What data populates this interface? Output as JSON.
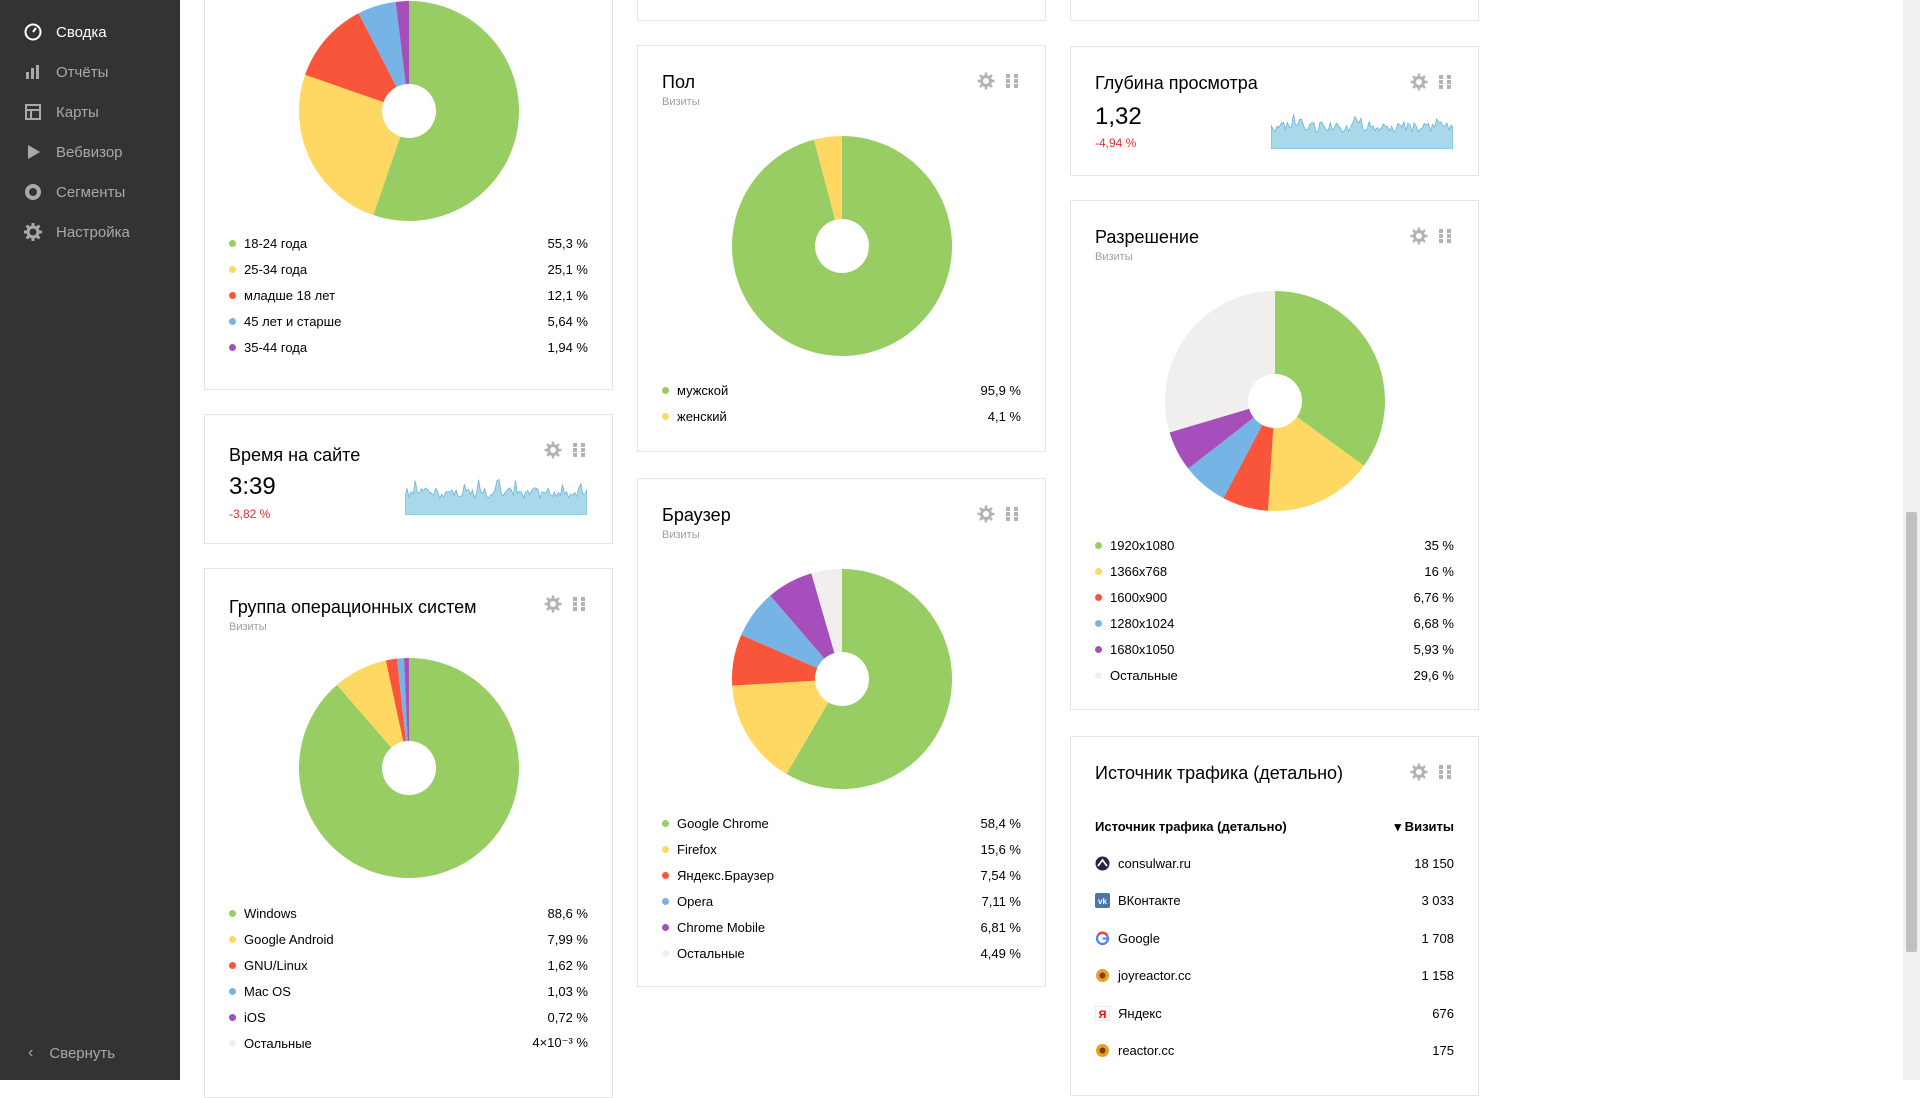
{
  "sidebar": {
    "items": [
      {
        "label": "Сводка",
        "icon": "dashboard-icon"
      },
      {
        "label": "Отчёты",
        "icon": "bar-chart-icon"
      },
      {
        "label": "Карты",
        "icon": "map-icon"
      },
      {
        "label": "Вебвизор",
        "icon": "play-icon"
      },
      {
        "label": "Сегменты",
        "icon": "segment-icon"
      },
      {
        "label": "Настройка",
        "icon": "gear-icon"
      }
    ],
    "collapse_label": "Свернуть"
  },
  "colors": {
    "green": "#97cd63",
    "yellow": "#fed862",
    "red": "#f9553a",
    "blue": "#76b4e6",
    "purple": "#a64fbc",
    "other": "#f1efed",
    "spark": "#a8d8ea",
    "negative": "#e0302f"
  },
  "age": {
    "legend": [
      {
        "label": "18-24 года",
        "value": "55,3 %",
        "color": "#97cd63",
        "share": 55.3
      },
      {
        "label": "25-34 года",
        "value": "25,1 %",
        "color": "#fed862",
        "share": 25.1
      },
      {
        "label": "младше 18 лет",
        "value": "12,1 %",
        "color": "#f9553a",
        "share": 12.1
      },
      {
        "label": "45 лет и старше",
        "value": "5,64 %",
        "color": "#76b4e6",
        "share": 5.64
      },
      {
        "label": "35-44 года",
        "value": "1,94 %",
        "color": "#a64fbc",
        "share": 1.94
      }
    ]
  },
  "time_on_site": {
    "title": "Время на сайте",
    "value": "3:39",
    "delta": "-3,82 %"
  },
  "os": {
    "title": "Группа операционных систем",
    "subtitle": "Визиты",
    "legend": [
      {
        "label": "Windows",
        "value": "88,6 %",
        "color": "#97cd63",
        "share": 88.6
      },
      {
        "label": "Google Android",
        "value": "7,99 %",
        "color": "#fed862",
        "share": 7.99
      },
      {
        "label": "GNU/Linux",
        "value": "1,62 %",
        "color": "#f9553a",
        "share": 1.62
      },
      {
        "label": "Mac OS",
        "value": "1,03 %",
        "color": "#76b4e6",
        "share": 1.03
      },
      {
        "label": "iOS",
        "value": "0,72 %",
        "color": "#a64fbc",
        "share": 0.72
      },
      {
        "label": "Остальные",
        "value": "4×10⁻³ %",
        "color": "#f1efed",
        "share": 0.004
      }
    ]
  },
  "gender": {
    "title": "Пол",
    "subtitle": "Визиты",
    "legend": [
      {
        "label": "мужской",
        "value": "95,9 %",
        "color": "#97cd63",
        "share": 95.9
      },
      {
        "label": "женский",
        "value": "4,1 %",
        "color": "#fed862",
        "share": 4.1
      }
    ]
  },
  "browser": {
    "title": "Браузер",
    "subtitle": "Визиты",
    "legend": [
      {
        "label": "Google Chrome",
        "value": "58,4 %",
        "color": "#97cd63",
        "share": 58.4
      },
      {
        "label": "Firefox",
        "value": "15,6 %",
        "color": "#fed862",
        "share": 15.6
      },
      {
        "label": "Яндекс.Браузер",
        "value": "7,54 %",
        "color": "#f9553a",
        "share": 7.54
      },
      {
        "label": "Opera",
        "value": "7,11 %",
        "color": "#76b4e6",
        "share": 7.11
      },
      {
        "label": "Chrome Mobile",
        "value": "6,81 %",
        "color": "#a64fbc",
        "share": 6.81
      },
      {
        "label": "Остальные",
        "value": "4,49 %",
        "color": "#f1efed",
        "share": 4.49
      }
    ]
  },
  "depth": {
    "title": "Глубина просмотра",
    "value": "1,32",
    "delta": "-4,94 %"
  },
  "resolution": {
    "title": "Разрешение",
    "subtitle": "Визиты",
    "legend": [
      {
        "label": "1920x1080",
        "value": "35 %",
        "color": "#97cd63",
        "share": 35
      },
      {
        "label": "1366x768",
        "value": "16 %",
        "color": "#fed862",
        "share": 16
      },
      {
        "label": "1600x900",
        "value": "6,76 %",
        "color": "#f9553a",
        "share": 6.76
      },
      {
        "label": "1280x1024",
        "value": "6,68 %",
        "color": "#76b4e6",
        "share": 6.68
      },
      {
        "label": "1680x1050",
        "value": "5,93 %",
        "color": "#a64fbc",
        "share": 5.93
      },
      {
        "label": "Остальные",
        "value": "29,6 %",
        "color": "#f1efed",
        "share": 29.6
      }
    ]
  },
  "traffic": {
    "title": "Источник трафика (детально)",
    "col_source": "Источник трафика (детально)",
    "col_visits": "▾ Визиты",
    "rows": [
      {
        "name": "consulwar.ru",
        "visits": "18 150",
        "icon": "consulwar-icon"
      },
      {
        "name": "ВКонтакте",
        "visits": "3 033",
        "icon": "vk-icon"
      },
      {
        "name": "Google",
        "visits": "1 708",
        "icon": "google-icon"
      },
      {
        "name": "joyreactor.cc",
        "visits": "1 158",
        "icon": "joyreactor-icon"
      },
      {
        "name": "Яндекс",
        "visits": "676",
        "icon": "yandex-icon"
      },
      {
        "name": "reactor.cc",
        "visits": "175",
        "icon": "reactor-icon"
      }
    ]
  },
  "chart_data": [
    {
      "type": "pie",
      "categories": [
        "18-24 года",
        "25-34 года",
        "младше 18 лет",
        "45 лет и старше",
        "35-44 года"
      ],
      "values": [
        55.3,
        25.1,
        12.1,
        5.64,
        1.94
      ]
    },
    {
      "type": "pie",
      "title": "Пол",
      "categories": [
        "мужской",
        "женский"
      ],
      "values": [
        95.9,
        4.1
      ]
    },
    {
      "type": "pie",
      "title": "Браузер",
      "categories": [
        "Google Chrome",
        "Firefox",
        "Яндекс.Браузер",
        "Opera",
        "Chrome Mobile",
        "Остальные"
      ],
      "values": [
        58.4,
        15.6,
        7.54,
        7.11,
        6.81,
        4.49
      ]
    },
    {
      "type": "pie",
      "title": "Группа операционных систем",
      "categories": [
        "Windows",
        "Google Android",
        "GNU/Linux",
        "Mac OS",
        "iOS",
        "Остальные"
      ],
      "values": [
        88.6,
        7.99,
        1.62,
        1.03,
        0.72,
        0.004
      ]
    },
    {
      "type": "pie",
      "title": "Разрешение",
      "categories": [
        "1920x1080",
        "1366x768",
        "1600x900",
        "1280x1024",
        "1680x1050",
        "Остальные"
      ],
      "values": [
        35,
        16,
        6.76,
        6.68,
        5.93,
        29.6
      ]
    }
  ]
}
